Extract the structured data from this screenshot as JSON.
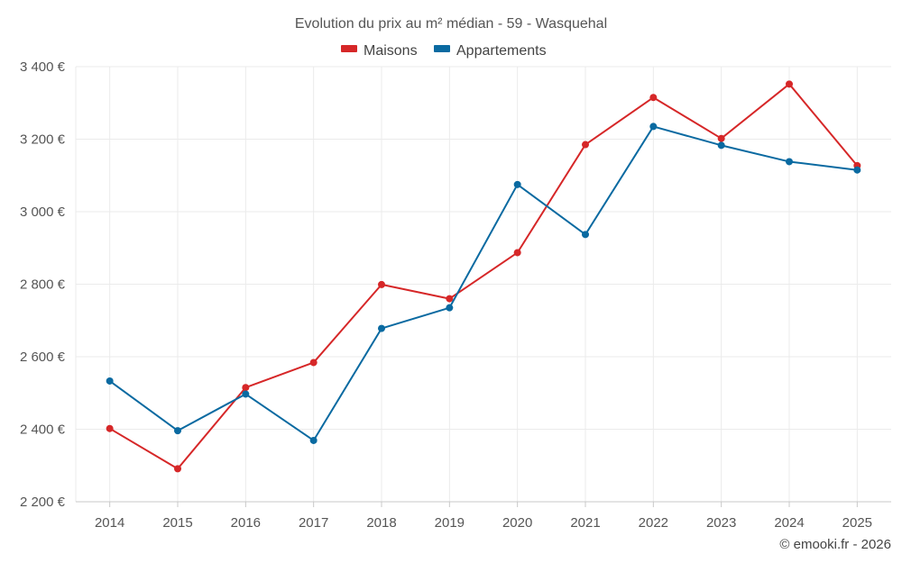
{
  "chart_data": {
    "type": "line",
    "title": "Evolution du prix au m² médian - 59 - Wasquehal",
    "categories": [
      "2014",
      "2015",
      "2016",
      "2017",
      "2018",
      "2019",
      "2020",
      "2021",
      "2022",
      "2023",
      "2024",
      "2025"
    ],
    "series": [
      {
        "name": "Maisons",
        "color": "#d62728",
        "values": [
          2402,
          2291,
          2515,
          2584,
          2799,
          2760,
          2887,
          3185,
          3315,
          3202,
          3352,
          3127
        ]
      },
      {
        "name": "Appartements",
        "color": "#0a6aa1",
        "values": [
          2533,
          2396,
          2497,
          2369,
          2678,
          2735,
          3075,
          2937,
          3235,
          3183,
          3138,
          3115
        ]
      }
    ],
    "ylim": [
      2200,
      3400
    ],
    "yticks": [
      2200,
      2400,
      2600,
      2800,
      3000,
      3200,
      3400
    ],
    "ytick_labels": [
      "2 200 €",
      "2 400 €",
      "2 600 €",
      "2 800 €",
      "3 000 €",
      "3 200 €",
      "3 400 €"
    ],
    "grid": true,
    "legend": "top-center",
    "xlabel": "",
    "ylabel": ""
  },
  "credit": "© emooki.fr - 2026"
}
